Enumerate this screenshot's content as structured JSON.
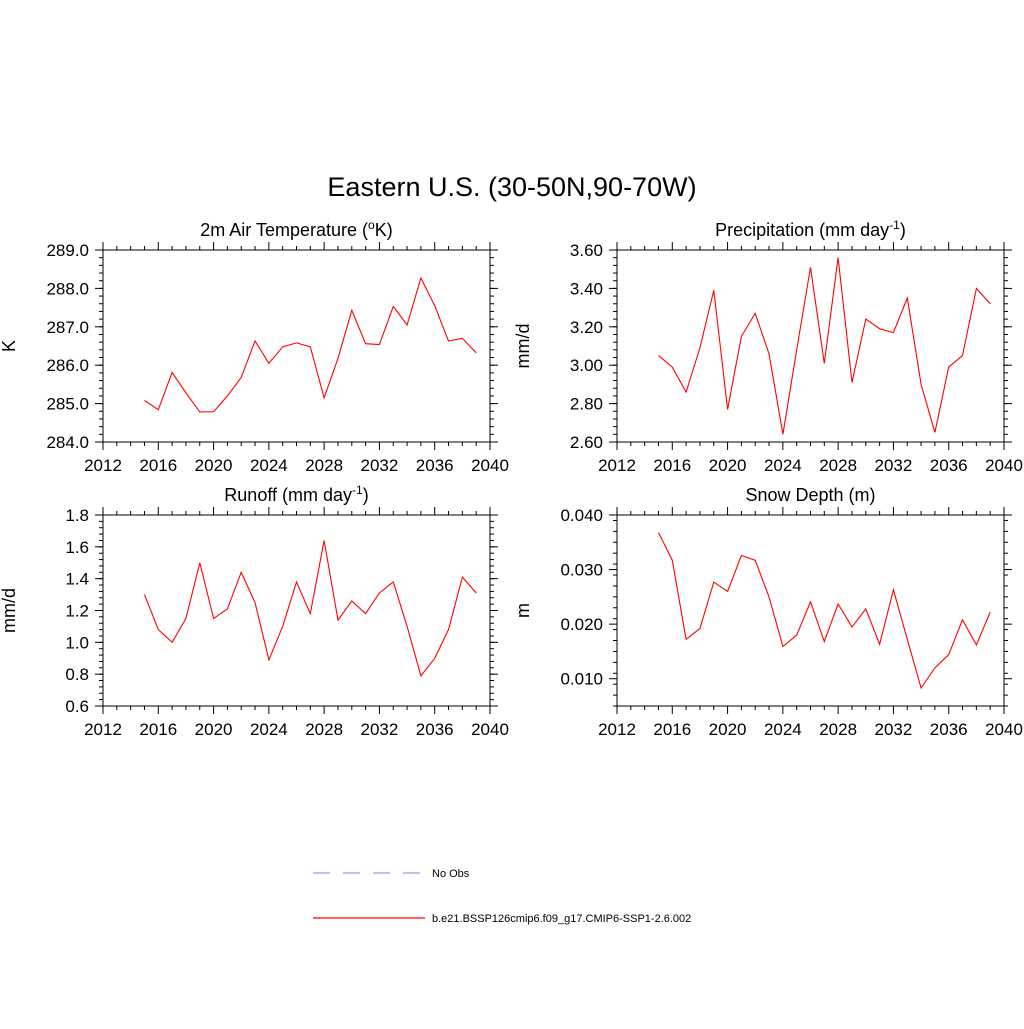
{
  "title": "Eastern U.S. (30-50N,90-70W)",
  "colors": {
    "series": "#ff0000",
    "obs": "#9999ff",
    "axis": "#000000"
  },
  "legend": {
    "obs_label": "No Obs",
    "model_label": "b.e21.BSSP126cmip6.f09_g17.CMIP6-SSP1-2.6.002"
  },
  "chart_data": [
    {
      "type": "line",
      "title_main": "2m Air Temperature (",
      "title_sup": "o",
      "title_tail": "K)",
      "ylabel": "K",
      "xlim": [
        2012,
        2040
      ],
      "ylim": [
        284.0,
        289.0
      ],
      "xticks": [
        2012,
        2016,
        2020,
        2024,
        2028,
        2032,
        2036,
        2040
      ],
      "yticks": [
        "284.0",
        "285.0",
        "286.0",
        "287.0",
        "288.0",
        "289.0"
      ],
      "x": [
        2015,
        2016,
        2017,
        2018,
        2019,
        2020,
        2021,
        2022,
        2023,
        2024,
        2025,
        2026,
        2027,
        2028,
        2029,
        2030,
        2031,
        2032,
        2033,
        2034,
        2035,
        2036,
        2037,
        2038,
        2039
      ],
      "series": [
        {
          "values": [
            285.08,
            284.84,
            285.81,
            285.28,
            284.78,
            284.79,
            285.2,
            285.68,
            286.63,
            286.05,
            286.48,
            286.58,
            286.48,
            285.15,
            286.18,
            287.43,
            286.56,
            286.54,
            287.53,
            287.05,
            288.27,
            287.55,
            286.63,
            286.7,
            286.32
          ]
        }
      ]
    },
    {
      "type": "line",
      "title_main": "Precipitation (mm day",
      "title_sup": "-1",
      "title_tail": ")",
      "ylabel": "mm/d",
      "xlim": [
        2012,
        2040
      ],
      "ylim": [
        2.6,
        3.6
      ],
      "xticks": [
        2012,
        2016,
        2020,
        2024,
        2028,
        2032,
        2036,
        2040
      ],
      "yticks": [
        "2.60",
        "2.80",
        "3.00",
        "3.20",
        "3.40",
        "3.60"
      ],
      "x": [
        2015,
        2016,
        2017,
        2018,
        2019,
        2020,
        2021,
        2022,
        2023,
        2024,
        2025,
        2026,
        2027,
        2028,
        2029,
        2030,
        2031,
        2032,
        2033,
        2034,
        2035,
        2036,
        2037,
        2038,
        2039
      ],
      "series": [
        {
          "values": [
            3.05,
            2.99,
            2.86,
            3.09,
            3.39,
            2.77,
            3.15,
            3.27,
            3.06,
            2.64,
            3.08,
            3.51,
            3.01,
            3.56,
            2.91,
            3.24,
            3.19,
            3.17,
            3.35,
            2.9,
            2.65,
            2.99,
            3.05,
            3.4,
            3.32
          ]
        }
      ]
    },
    {
      "type": "line",
      "title_main": "Runoff (mm day",
      "title_sup": "-1",
      "title_tail": ")",
      "ylabel": "mm/d",
      "xlim": [
        2012,
        2040
      ],
      "ylim": [
        0.6,
        1.8
      ],
      "xticks": [
        2012,
        2016,
        2020,
        2024,
        2028,
        2032,
        2036,
        2040
      ],
      "yticks": [
        "0.6",
        "0.8",
        "1.0",
        "1.2",
        "1.4",
        "1.6",
        "1.8"
      ],
      "x": [
        2015,
        2016,
        2017,
        2018,
        2019,
        2020,
        2021,
        2022,
        2023,
        2024,
        2025,
        2026,
        2027,
        2028,
        2029,
        2030,
        2031,
        2032,
        2033,
        2034,
        2035,
        2036,
        2037,
        2038,
        2039
      ],
      "series": [
        {
          "values": [
            1.3,
            1.08,
            1.0,
            1.15,
            1.5,
            1.15,
            1.21,
            1.44,
            1.25,
            0.89,
            1.1,
            1.38,
            1.18,
            1.64,
            1.14,
            1.26,
            1.18,
            1.31,
            1.38,
            1.1,
            0.79,
            0.9,
            1.08,
            1.41,
            1.31
          ]
        }
      ]
    },
    {
      "type": "line",
      "title_main": "Snow Depth (m)",
      "title_sup": "",
      "title_tail": "",
      "ylabel": "m",
      "xlim": [
        2012,
        2040
      ],
      "ylim": [
        0.005,
        0.04
      ],
      "xticks": [
        2012,
        2016,
        2020,
        2024,
        2028,
        2032,
        2036,
        2040
      ],
      "yticks": [
        "0.010",
        "0.020",
        "0.030",
        "0.040"
      ],
      "x": [
        2015,
        2016,
        2017,
        2018,
        2019,
        2020,
        2021,
        2022,
        2023,
        2024,
        2025,
        2026,
        2027,
        2028,
        2029,
        2030,
        2031,
        2032,
        2033,
        2034,
        2035,
        2036,
        2037,
        2038,
        2039
      ],
      "series": [
        {
          "values": [
            0.0368,
            0.0317,
            0.0172,
            0.0192,
            0.0277,
            0.026,
            0.0326,
            0.0317,
            0.025,
            0.0159,
            0.018,
            0.0241,
            0.0168,
            0.0237,
            0.0195,
            0.0228,
            0.0163,
            0.0263,
            0.0172,
            0.0083,
            0.012,
            0.0144,
            0.0208,
            0.0162,
            0.0222
          ]
        }
      ]
    }
  ]
}
